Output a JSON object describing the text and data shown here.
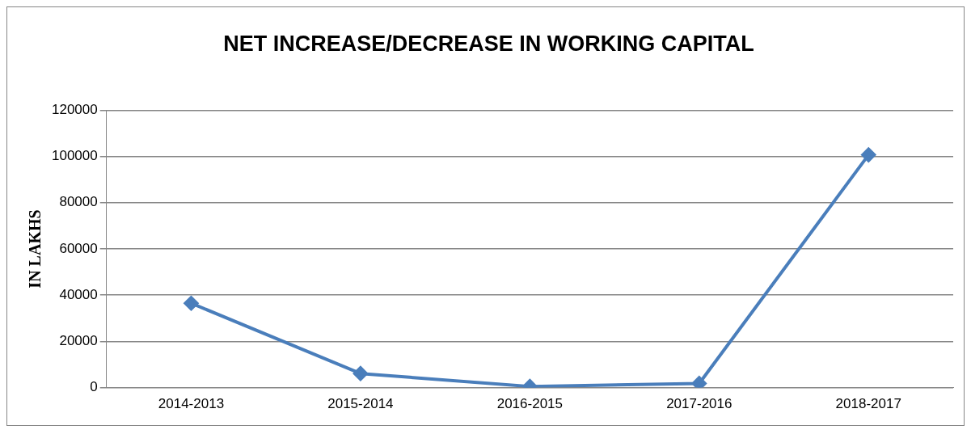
{
  "chart_data": {
    "type": "line",
    "title": "NET INCREASE/DECREASE IN WORKING CAPITAL",
    "ylabel": "IN LAKHS",
    "categories": [
      "2014-2013",
      "2015-2014",
      "2016-2015",
      "2017-2016",
      "2018-2017"
    ],
    "series": [
      {
        "color": "#4a7ebb",
        "values": [
          36500,
          6100,
          500,
          1800,
          100700
        ]
      }
    ],
    "ylim": [
      0,
      120000
    ],
    "yticks": [
      0,
      20000,
      40000,
      60000,
      80000,
      100000,
      120000
    ],
    "grid": "y",
    "legend": false,
    "marker": "diamond",
    "line_style": "solid"
  }
}
